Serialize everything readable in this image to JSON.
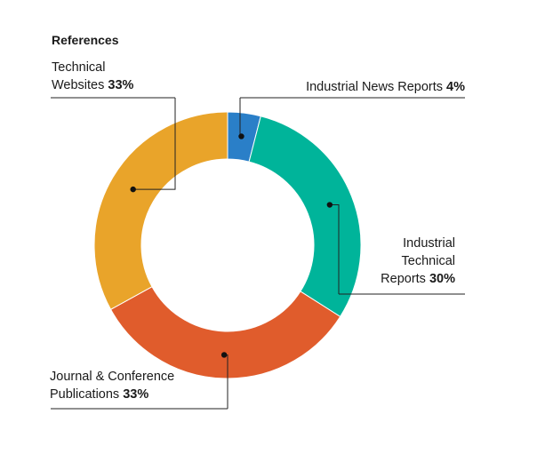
{
  "chart_data": {
    "type": "pie",
    "style": "donut",
    "title": "References",
    "categories": [
      "Industrial News Reports",
      "Industrial Technical Reports",
      "Journal & Conference Publications",
      "Technical Websites"
    ],
    "values": [
      4,
      30,
      33,
      33
    ],
    "value_labels": [
      "4%",
      "30%",
      "33%",
      "33%"
    ],
    "colors": [
      "#2a7fc8",
      "#00b49a",
      "#e05c2c",
      "#e9a42a"
    ],
    "label_lines": [
      [
        "Industrial News Reports"
      ],
      [
        "Industrial",
        "Technical",
        "Reports"
      ],
      [
        "Journal & Conference",
        "Publications"
      ],
      [
        "Technical",
        "Websites"
      ]
    ],
    "legend": "callouts"
  }
}
